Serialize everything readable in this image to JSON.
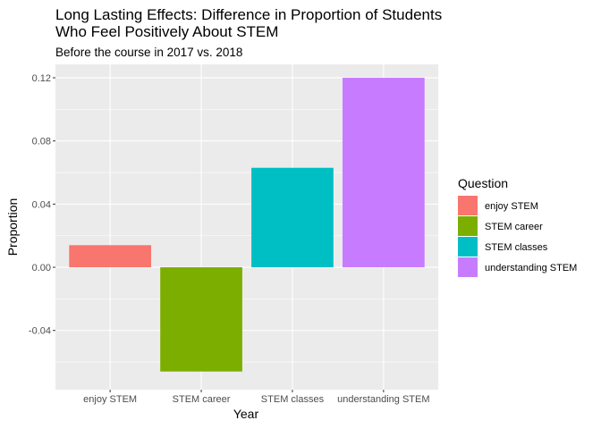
{
  "chart_data": {
    "type": "bar",
    "title_lines": [
      "Long Lasting Effects: Difference in Proportion of Students",
      "Who Feel Positively About STEM"
    ],
    "subtitle": "Before the course in 2017 vs. 2018",
    "xlabel": "Year",
    "ylabel": "Proportion",
    "categories": [
      "enjoy STEM",
      "STEM career",
      "STEM classes",
      "understanding STEM"
    ],
    "values": [
      0.014,
      -0.066,
      0.063,
      0.12
    ],
    "colors": [
      "#F8766D",
      "#7CAE00",
      "#00BFC4",
      "#C77CFF"
    ],
    "ylim": [
      -0.0775,
      0.1285
    ],
    "yticks": [
      -0.04,
      0.0,
      0.04,
      0.08,
      0.12
    ],
    "ytick_labels": [
      "-0.04",
      "0.00",
      "0.04",
      "0.08",
      "0.12"
    ],
    "grid": true,
    "panel_background": "#EBEBEB",
    "legend": {
      "title": "Question",
      "position": "right",
      "entries": [
        "enjoy STEM",
        "STEM career",
        "STEM classes",
        "understanding STEM"
      ]
    }
  }
}
